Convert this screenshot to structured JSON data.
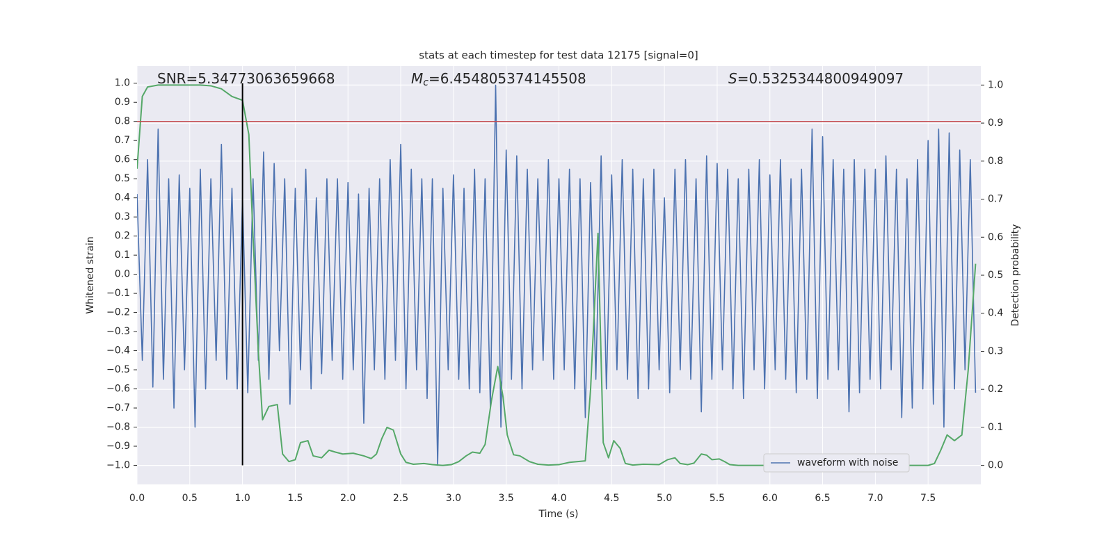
{
  "chart_data": {
    "type": "line",
    "title": "stats at each timestep for test data 12175 [signal=0]",
    "xlabel": "Time (s)",
    "ylabel": "Whitened strain",
    "y2label": "Detection probability",
    "annotations": [
      {
        "text": "SNR=5.34773063659668"
      },
      {
        "symbol": "M",
        "subscript": "c",
        "text": "=6.454805374145508"
      },
      {
        "symbol": "S",
        "text": "=0.5325344800949097"
      }
    ],
    "xlim": [
      0,
      8
    ],
    "ylim": [
      -1.1,
      1.09
    ],
    "y2lim": [
      -0.05,
      1.05
    ],
    "xticks": [
      {
        "value": 0,
        "label": "0.0"
      },
      0.5,
      {
        "value": 1,
        "label": "1.0"
      },
      1.5,
      {
        "value": 2,
        "label": "2.0"
      },
      2.5,
      {
        "value": 3,
        "label": "3.0"
      },
      3.5,
      {
        "value": 4,
        "label": "4.0"
      },
      4.5,
      {
        "value": 5,
        "label": "5.0"
      },
      5.5,
      {
        "value": 6,
        "label": "6.0"
      },
      6.5,
      {
        "value": 7,
        "label": "7.0"
      },
      7.5
    ],
    "yticks": [
      {
        "value": -1,
        "label": "−1.0"
      },
      {
        "value": -0.9,
        "label": "−0.9"
      },
      {
        "value": -0.8,
        "label": "−0.8"
      },
      {
        "value": -0.7,
        "label": "−0.7"
      },
      {
        "value": -0.6,
        "label": "−0.6"
      },
      {
        "value": -0.5,
        "label": "−0.5"
      },
      {
        "value": -0.4,
        "label": "−0.4"
      },
      {
        "value": -0.3,
        "label": "−0.3"
      },
      {
        "value": -0.2,
        "label": "−0.2"
      },
      {
        "value": -0.1,
        "label": "−0.1"
      },
      {
        "value": 0,
        "label": "0.0"
      },
      0.1,
      0.2,
      0.3,
      0.4,
      0.5,
      0.6,
      0.7,
      0.8,
      0.9,
      {
        "value": 1,
        "label": "1.0"
      }
    ],
    "y2ticks": [
      {
        "value": 0,
        "label": "0.0"
      },
      0.1,
      0.2,
      0.3,
      0.4,
      0.5,
      0.6,
      0.7,
      0.8,
      0.9,
      {
        "value": 1,
        "label": "1.0"
      }
    ],
    "grid": true,
    "legend": "lower right",
    "hlines": [
      {
        "y": 0.8,
        "color": "#c44e52"
      }
    ],
    "vlines": [
      {
        "x": 1,
        "ymin": -1,
        "ymax": 1,
        "color": "#000000"
      }
    ],
    "series": [
      {
        "name": "waveform with noise",
        "color": "#4c72b0",
        "x": [
          0,
          0.05,
          0.1,
          0.15,
          0.2,
          0.25,
          0.3,
          0.35,
          0.4,
          0.45,
          0.5,
          0.55,
          0.6,
          0.65,
          0.7,
          0.75,
          0.8,
          0.85,
          0.9,
          0.95,
          1,
          1.05,
          1.1,
          1.15,
          1.2,
          1.25,
          1.3,
          1.35,
          1.4,
          1.45,
          1.5,
          1.55,
          1.6,
          1.65,
          1.7,
          1.75,
          1.8,
          1.85,
          1.9,
          1.95,
          2,
          2.05,
          2.1,
          2.15,
          2.2,
          2.25,
          2.3,
          2.35,
          2.4,
          2.45,
          2.5,
          2.55,
          2.6,
          2.65,
          2.7,
          2.75,
          2.8,
          2.85,
          2.9,
          2.95,
          3,
          3.05,
          3.1,
          3.15,
          3.2,
          3.25,
          3.3,
          3.35,
          3.4,
          3.45,
          3.5,
          3.55,
          3.6,
          3.65,
          3.7,
          3.75,
          3.8,
          3.85,
          3.9,
          3.95,
          4,
          4.05,
          4.1,
          4.15,
          4.2,
          4.25,
          4.3,
          4.35,
          4.4,
          4.45,
          4.5,
          4.55,
          4.6,
          4.65,
          4.7,
          4.75,
          4.8,
          4.85,
          4.9,
          4.95,
          5,
          5.05,
          5.1,
          5.15,
          5.2,
          5.25,
          5.3,
          5.35,
          5.4,
          5.45,
          5.5,
          5.55,
          5.6,
          5.65,
          5.7,
          5.75,
          5.8,
          5.85,
          5.9,
          5.95,
          6,
          6.05,
          6.1,
          6.15,
          6.2,
          6.25,
          6.3,
          6.35,
          6.4,
          6.45,
          6.5,
          6.55,
          6.6,
          6.65,
          6.7,
          6.75,
          6.8,
          6.85,
          6.9,
          6.95,
          7,
          7.05,
          7.1,
          7.15,
          7.2,
          7.25,
          7.3,
          7.35,
          7.4,
          7.45,
          7.5,
          7.55,
          7.6,
          7.65,
          7.7,
          7.75,
          7.8,
          7.85,
          7.9,
          7.95
        ],
        "values": [
          0.42,
          -0.45,
          0.6,
          -0.59,
          0.76,
          -0.55,
          0.5,
          -0.7,
          0.52,
          -0.5,
          0.45,
          -0.8,
          0.55,
          -0.6,
          0.5,
          -0.45,
          0.68,
          -0.55,
          0.45,
          -0.6,
          0.4,
          -0.62,
          0.5,
          -0.45,
          0.64,
          -0.55,
          0.58,
          -0.4,
          0.5,
          -0.68,
          0.45,
          -0.5,
          0.55,
          -0.6,
          0.4,
          -0.52,
          0.5,
          -0.45,
          0.5,
          -0.55,
          0.48,
          -0.5,
          0.42,
          -0.78,
          0.45,
          -0.5,
          0.5,
          -0.55,
          0.6,
          -0.45,
          0.68,
          -0.6,
          0.55,
          -0.5,
          0.5,
          -0.65,
          0.5,
          -1.0,
          0.45,
          -0.5,
          0.52,
          -0.55,
          0.45,
          -0.6,
          0.55,
          -0.62,
          0.5,
          -0.7,
          0.99,
          -0.8,
          0.65,
          -0.55,
          0.62,
          -0.6,
          0.55,
          -0.5,
          0.5,
          -0.45,
          0.6,
          -0.55,
          0.5,
          -0.5,
          0.55,
          -0.6,
          0.5,
          -0.75,
          0.48,
          -0.55,
          0.62,
          -0.6,
          0.52,
          -0.5,
          0.6,
          -0.55,
          0.55,
          -0.65,
          0.5,
          -0.6,
          0.55,
          -0.5,
          0.4,
          -0.62,
          0.55,
          -0.5,
          0.6,
          -0.55,
          0.5,
          -0.72,
          0.62,
          -0.55,
          0.58,
          -0.5,
          0.55,
          -0.6,
          0.5,
          -0.65,
          0.55,
          -0.5,
          0.6,
          -0.6,
          0.52,
          -0.5,
          0.6,
          -0.55,
          0.5,
          -0.62,
          0.55,
          -0.55,
          0.76,
          -0.65,
          0.72,
          -0.55,
          0.6,
          -0.5,
          0.55,
          -0.72,
          0.6,
          -0.62,
          0.55,
          -0.55,
          0.55,
          -0.6,
          0.62,
          -0.5,
          0.55,
          -0.75,
          0.5,
          -0.7,
          0.6,
          -0.6,
          0.7,
          -0.68,
          0.76,
          -0.8,
          0.74,
          -0.6,
          0.65,
          -0.5,
          0.6,
          -0.62
        ]
      },
      {
        "color": "#55a868",
        "axis": "y2",
        "x": [
          0,
          0.05,
          0.1,
          0.2,
          0.4,
          0.6,
          0.7,
          0.8,
          0.9,
          0.95,
          1,
          1.06,
          1.1,
          1.15,
          1.19,
          1.25,
          1.33,
          1.38,
          1.44,
          1.5,
          1.55,
          1.62,
          1.67,
          1.75,
          1.82,
          1.88,
          1.95,
          2.05,
          2.15,
          2.22,
          2.27,
          2.32,
          2.37,
          2.43,
          2.5,
          2.55,
          2.62,
          2.72,
          2.8,
          2.9,
          2.98,
          3.05,
          3.12,
          3.18,
          3.25,
          3.3,
          3.36,
          3.42,
          3.47,
          3.51,
          3.57,
          3.63,
          3.72,
          3.8,
          3.9,
          4,
          4.1,
          4.25,
          4.3,
          4.37,
          4.42,
          4.47,
          4.52,
          4.58,
          4.63,
          4.7,
          4.8,
          4.95,
          5.03,
          5.1,
          5.15,
          5.22,
          5.28,
          5.35,
          5.4,
          5.45,
          5.52,
          5.57,
          5.62,
          5.7,
          5.9,
          6.2,
          6.5,
          6.6,
          6.68,
          6.75,
          6.8,
          6.9,
          7.2,
          7.5,
          7.56,
          7.62,
          7.68,
          7.75,
          7.82,
          7.88,
          7.95
        ],
        "values": [
          0.78,
          0.97,
          0.995,
          1.0,
          1.0,
          1.0,
          0.998,
          0.99,
          0.97,
          0.965,
          0.96,
          0.87,
          0.6,
          0.3,
          0.12,
          0.155,
          0.16,
          0.03,
          0.01,
          0.015,
          0.06,
          0.065,
          0.025,
          0.02,
          0.04,
          0.035,
          0.03,
          0.032,
          0.025,
          0.018,
          0.03,
          0.07,
          0.1,
          0.093,
          0.03,
          0.008,
          0.003,
          0.005,
          0.002,
          0.0,
          0.002,
          0.01,
          0.025,
          0.035,
          0.032,
          0.055,
          0.17,
          0.26,
          0.18,
          0.08,
          0.028,
          0.025,
          0.01,
          0.003,
          0.001,
          0.002,
          0.008,
          0.012,
          0.2,
          0.61,
          0.06,
          0.02,
          0.065,
          0.045,
          0.005,
          0.001,
          0.003,
          0.002,
          0.015,
          0.02,
          0.005,
          0.002,
          0.006,
          0.03,
          0.027,
          0.015,
          0.017,
          0.01,
          0.002,
          0.0,
          0.0,
          0.0,
          0.0,
          0.002,
          0.004,
          0.01,
          0.002,
          0.0,
          0.0,
          0.0,
          0.005,
          0.04,
          0.08,
          0.065,
          0.08,
          0.25,
          0.53
        ]
      }
    ]
  }
}
